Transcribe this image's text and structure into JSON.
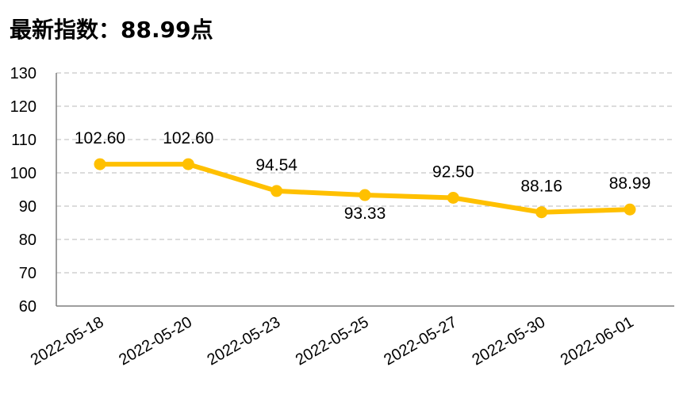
{
  "header": {
    "title": "最新指数：88.99点"
  },
  "colors": {
    "series": "#FFC000",
    "grid": "#C8C8C8",
    "axis": "#7F7F7F"
  },
  "chart_data": {
    "type": "line",
    "title": "最新指数：88.99点",
    "x": [
      "2022-05-18",
      "2022-05-20",
      "2022-05-23",
      "2022-05-25",
      "2022-05-27",
      "2022-05-30",
      "2022-06-01"
    ],
    "series": [
      {
        "values": [
          102.6,
          102.6,
          94.54,
          93.33,
          92.5,
          88.16,
          88.99
        ]
      }
    ],
    "data_labels": [
      "102.60",
      "102.60",
      "94.54",
      "93.33",
      "92.50",
      "88.16",
      "88.99"
    ],
    "y_ticks": [
      "60",
      "70",
      "80",
      "90",
      "100",
      "110",
      "120",
      "130"
    ],
    "ylim": [
      60,
      130
    ],
    "grid": true,
    "legend": "none"
  }
}
